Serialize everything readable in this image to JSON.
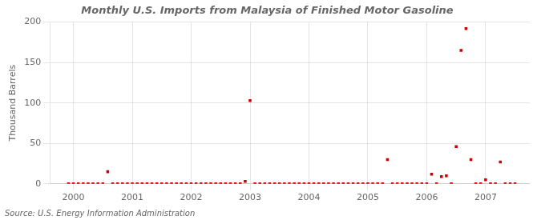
{
  "chart_data": {
    "type": "scatter",
    "title": "Monthly U.S. Imports from Malaysia of Finished Motor Gasoline",
    "ylabel": "Thousand Barrels",
    "annotation": "Source: U.S. Energy Information Administration",
    "color": "#cc0000",
    "marker": "square",
    "grid": true,
    "xlim": [
      1999.6,
      2007.75
    ],
    "xticks": [
      2000,
      2001,
      2002,
      2003,
      2004,
      2005,
      2006,
      2007
    ],
    "ylim": [
      0,
      200
    ],
    "yticks": [
      0,
      50,
      100,
      150,
      200
    ],
    "x": [
      1999.917,
      2000.0,
      2000.083,
      2000.167,
      2000.25,
      2000.333,
      2000.417,
      2000.5,
      2000.583,
      2000.667,
      2000.75,
      2000.833,
      2000.917,
      2001.0,
      2001.083,
      2001.167,
      2001.25,
      2001.333,
      2001.417,
      2001.5,
      2001.583,
      2001.667,
      2001.75,
      2001.833,
      2001.917,
      2002.0,
      2002.083,
      2002.167,
      2002.25,
      2002.333,
      2002.417,
      2002.5,
      2002.583,
      2002.667,
      2002.75,
      2002.833,
      2002.917,
      2003.0,
      2003.083,
      2003.167,
      2003.25,
      2003.333,
      2003.417,
      2003.5,
      2003.583,
      2003.667,
      2003.75,
      2003.833,
      2003.917,
      2004.0,
      2004.083,
      2004.167,
      2004.25,
      2004.333,
      2004.417,
      2004.5,
      2004.583,
      2004.667,
      2004.75,
      2004.833,
      2004.917,
      2005.0,
      2005.083,
      2005.167,
      2005.25,
      2005.333,
      2005.417,
      2005.5,
      2005.583,
      2005.667,
      2005.75,
      2005.833,
      2005.917,
      2006.0,
      2006.083,
      2006.167,
      2006.25,
      2006.333,
      2006.417,
      2006.5,
      2006.583,
      2006.667,
      2006.75,
      2006.833,
      2006.917,
      2007.0,
      2007.083,
      2007.167,
      2007.25,
      2007.333,
      2007.417,
      2007.5
    ],
    "values": [
      0,
      0,
      0,
      0,
      0,
      0,
      0,
      0,
      15,
      0,
      0,
      0,
      0,
      0,
      0,
      0,
      0,
      0,
      0,
      0,
      0,
      0,
      0,
      0,
      0,
      0,
      0,
      0,
      0,
      0,
      0,
      0,
      0,
      0,
      0,
      0,
      3,
      103,
      0,
      0,
      0,
      0,
      0,
      0,
      0,
      0,
      0,
      0,
      0,
      0,
      0,
      0,
      0,
      0,
      0,
      0,
      0,
      0,
      0,
      0,
      0,
      0,
      0,
      0,
      0,
      30,
      0,
      0,
      0,
      0,
      0,
      0,
      0,
      0,
      12,
      0,
      9,
      10,
      0,
      46,
      165,
      192,
      30,
      0,
      0,
      5,
      0,
      0,
      27,
      0,
      0,
      0
    ]
  }
}
